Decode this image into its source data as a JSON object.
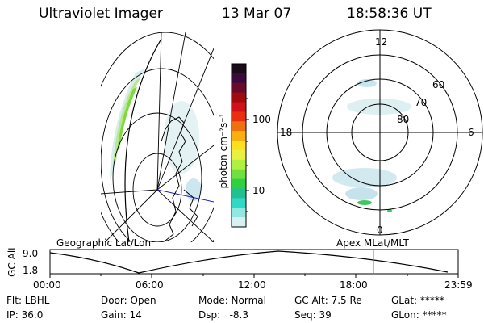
{
  "header": {
    "instrument": "Ultraviolet Imager",
    "date": "13 Mar 07",
    "time": "18:58:36 UT"
  },
  "colorbar": {
    "unit_label": "photon cm⁻²s⁻¹",
    "ticks": [
      "100",
      "10"
    ],
    "colors": [
      "#1a0a1a",
      "#3a0a3a",
      "#6a0a2a",
      "#a00a10",
      "#d0101a",
      "#e83010",
      "#f07010",
      "#f8b010",
      "#ffe020",
      "#e8f040",
      "#b0f040",
      "#70e040",
      "#30d040",
      "#20c090",
      "#30d8c8",
      "#90e8e0",
      "#d8f0f0"
    ]
  },
  "left_map": {
    "label": "Geographic Lat/Lon"
  },
  "polar_plot": {
    "label": "Apex MLat/MLT",
    "mlt_labels": {
      "top": "12",
      "left": "18",
      "right": "6",
      "bottom": "0"
    },
    "lat_labels": [
      "60",
      "70",
      "80"
    ]
  },
  "timeline": {
    "y_label": "GC Alt",
    "y_ticks": [
      "9.0",
      "1.8"
    ],
    "x_ticks": [
      "00:00",
      "06:00",
      "12:00",
      "18:00",
      "23:59"
    ],
    "current_time_color": "#ff4040"
  },
  "info": {
    "flt": "Flt: LBHL",
    "ip": "IP: 36.0",
    "door": "Door: Open",
    "gain": "Gain: 14",
    "mode": "Mode: Normal",
    "dsp": "Dsp:   -8.3",
    "gcalt": "GC Alt: 7.5 Re",
    "seq": "Seq: 39",
    "glat": "GLat: *****",
    "glon": "GLon: *****"
  }
}
